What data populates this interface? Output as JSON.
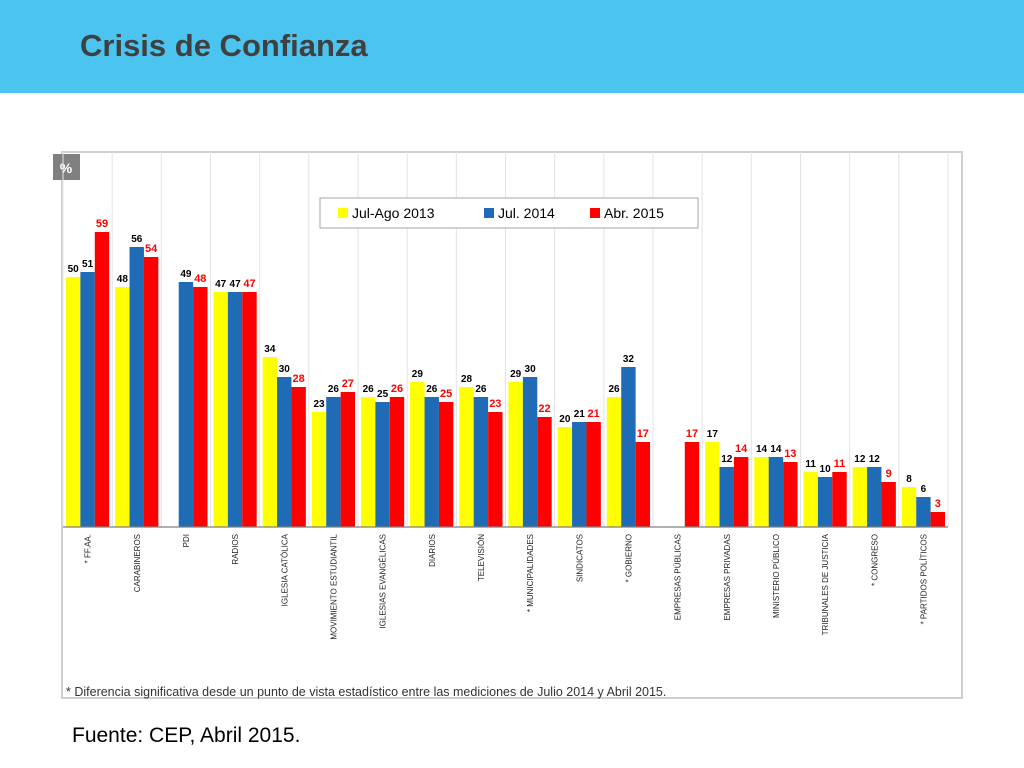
{
  "header": {
    "title": "Crisis de Confianza"
  },
  "footer": {
    "source": "Fuente: CEP, Abril 2015."
  },
  "colors": {
    "header_bg": "#4bc4ef",
    "series": [
      "#ffff00",
      "#1f6bb5",
      "#ff0000"
    ]
  },
  "chart_data": {
    "type": "bar",
    "unit_label": "%",
    "ylim": [
      0,
      75
    ],
    "grid": "vertical separators",
    "legend": "top-center",
    "categories": [
      "* FF.AA.",
      "CARABINEROS",
      "PDI",
      "RADIOS",
      "IGLESIA CATÓLICA",
      "MOVIMIENTO ESTUDIANTIL",
      "IGLESIAS EVANGÉLICAS",
      "DIARIOS",
      "TELEVISIÓN",
      "* MUNICIPALIDADES",
      "SINDICATOS",
      "* GOBIERNO",
      "EMPRESAS PÚBLICAS",
      "EMPRESAS PRIVADAS",
      "MINISTERIO PÚBLICO",
      "TRIBUNALES DE JUSTICIA",
      "* CONGRESO",
      "* PARTIDOS POLÍTICOS"
    ],
    "series": [
      {
        "name": "Jul-Ago 2013",
        "color": "#ffff00",
        "values": [
          50,
          48,
          null,
          47,
          34,
          23,
          26,
          29,
          28,
          29,
          20,
          26,
          null,
          17,
          14,
          11,
          12,
          8
        ]
      },
      {
        "name": "Jul. 2014",
        "color": "#1f6bb5",
        "values": [
          51,
          56,
          49,
          47,
          30,
          26,
          25,
          26,
          26,
          30,
          21,
          32,
          null,
          12,
          14,
          10,
          12,
          6
        ]
      },
      {
        "name": "Abr. 2015",
        "color": "#ff0000",
        "values": [
          59,
          54,
          48,
          47,
          28,
          27,
          26,
          25,
          23,
          22,
          21,
          17,
          17,
          14,
          13,
          11,
          9,
          3
        ]
      }
    ],
    "footnote": "* Diferencia significativa desde un punto de vista estadístico entre las mediciones de Julio 2014 y Abril 2015."
  }
}
